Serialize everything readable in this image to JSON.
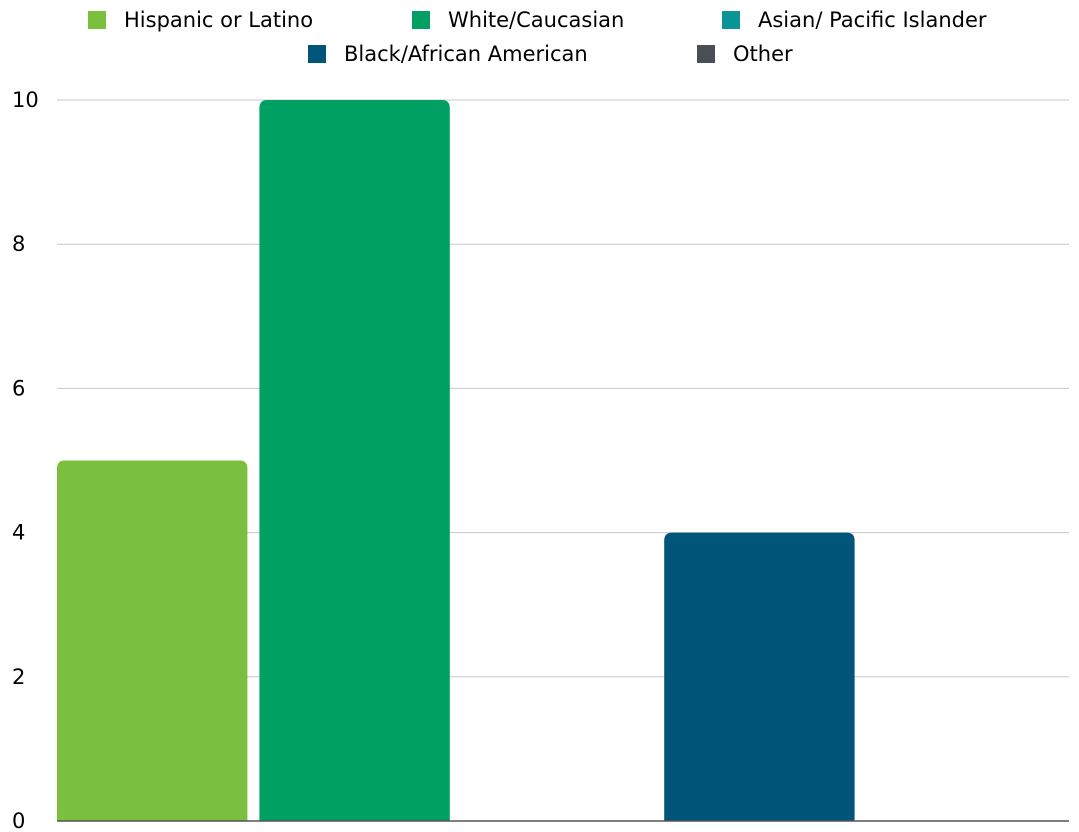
{
  "chart_data": {
    "type": "bar",
    "title": "",
    "xlabel": "",
    "ylabel": "",
    "ylim": [
      0,
      10
    ],
    "yticks": [
      0,
      2,
      4,
      6,
      8,
      10
    ],
    "grid": true,
    "legend_position": "top",
    "series": [
      {
        "name": "Hispanic or Latino",
        "value": 5,
        "color": "#7bbf3e"
      },
      {
        "name": "White/Caucasian",
        "value": 10,
        "color": "#00a063"
      },
      {
        "name": "Asian/ Pacific Islander",
        "value": 0,
        "color": "#0b9596"
      },
      {
        "name": "Black/African American",
        "value": 4,
        "color": "#005578"
      },
      {
        "name": "Other",
        "value": 0,
        "color": "#4a4f55"
      }
    ]
  }
}
